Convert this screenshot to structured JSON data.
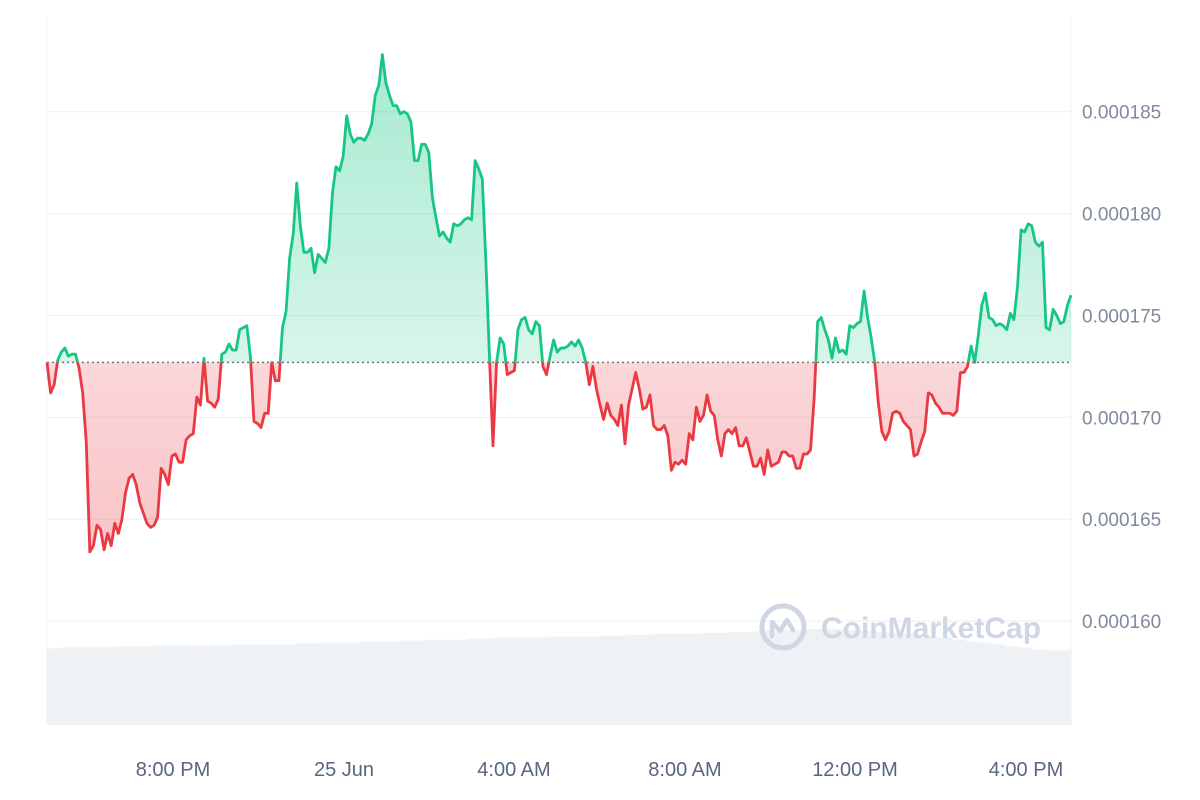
{
  "chart_data": {
    "type": "area",
    "baseline": 0.0001727,
    "ylim": [
      0.0001549,
      0.0001896
    ],
    "y_ticks": [
      "0.000160",
      "0.000165",
      "0.000170",
      "0.000175",
      "0.000180",
      "0.000185"
    ],
    "x_ticks": [
      "8:00 PM",
      "25 Jun",
      "4:00 AM",
      "8:00 AM",
      "12:00 PM",
      "4:00 PM"
    ],
    "grid": true,
    "colors": {
      "up": "#16c784",
      "down": "#ea3943",
      "grid": "#eff2f5",
      "volume": "#eff2f5",
      "baseline": "#6b7280"
    },
    "series": [
      {
        "values": [
          0.0001727,
          0.0001712,
          0.0001716,
          0.0001728,
          0.0001732,
          0.0001734,
          0.000173,
          0.0001731,
          0.0001731,
          0.0001724,
          0.0001712,
          0.0001688,
          0.0001634,
          0.0001637,
          0.0001647,
          0.0001645,
          0.0001635,
          0.0001643,
          0.0001637,
          0.0001648,
          0.0001643,
          0.000165,
          0.0001663,
          0.000167,
          0.0001672,
          0.0001667,
          0.0001658,
          0.0001653,
          0.0001648,
          0.0001646,
          0.0001647,
          0.0001651,
          0.0001675,
          0.0001672,
          0.0001667,
          0.0001681,
          0.0001682,
          0.0001678,
          0.0001678,
          0.0001689,
          0.0001691,
          0.0001692,
          0.000171,
          0.0001706,
          0.0001729,
          0.0001708,
          0.0001707,
          0.0001705,
          0.0001709,
          0.0001731,
          0.0001732,
          0.0001736,
          0.0001733,
          0.0001733,
          0.0001743,
          0.0001744,
          0.0001745,
          0.000173,
          0.0001698,
          0.0001697,
          0.0001695,
          0.0001702,
          0.0001702,
          0.0001727,
          0.0001718,
          0.0001718,
          0.0001744,
          0.0001752,
          0.0001778,
          0.000179,
          0.0001815,
          0.0001794,
          0.0001781,
          0.0001781,
          0.0001783,
          0.0001771,
          0.000178,
          0.0001778,
          0.0001776,
          0.0001783,
          0.000181,
          0.0001823,
          0.0001821,
          0.0001828,
          0.0001848,
          0.0001839,
          0.0001835,
          0.0001837,
          0.0001837,
          0.0001836,
          0.0001839,
          0.0001844,
          0.0001858,
          0.0001863,
          0.0001878,
          0.0001864,
          0.0001858,
          0.0001853,
          0.0001853,
          0.0001849,
          0.000185,
          0.0001849,
          0.0001845,
          0.0001826,
          0.0001826,
          0.0001834,
          0.0001834,
          0.000183,
          0.0001808,
          0.0001798,
          0.0001789,
          0.0001791,
          0.0001788,
          0.0001786,
          0.0001795,
          0.0001794,
          0.0001795,
          0.0001797,
          0.0001798,
          0.0001797,
          0.0001826,
          0.0001822,
          0.0001817,
          0.0001777,
          0.000173,
          0.0001686,
          0.0001727,
          0.0001739,
          0.0001736,
          0.0001721,
          0.0001722,
          0.0001723,
          0.0001743,
          0.0001748,
          0.0001749,
          0.0001743,
          0.0001741,
          0.0001747,
          0.0001745,
          0.0001725,
          0.0001721,
          0.000173,
          0.0001738,
          0.0001732,
          0.0001734,
          0.0001734,
          0.0001735,
          0.0001737,
          0.0001735,
          0.0001738,
          0.0001734,
          0.0001727,
          0.0001716,
          0.0001725,
          0.0001714,
          0.0001706,
          0.0001699,
          0.0001707,
          0.0001701,
          0.0001699,
          0.0001696,
          0.0001706,
          0.0001687,
          0.0001706,
          0.0001714,
          0.0001722,
          0.0001714,
          0.0001704,
          0.0001705,
          0.0001711,
          0.0001696,
          0.0001694,
          0.0001694,
          0.0001696,
          0.0001691,
          0.0001674,
          0.0001678,
          0.0001677,
          0.0001679,
          0.0001677,
          0.0001692,
          0.0001689,
          0.0001705,
          0.0001698,
          0.0001701,
          0.0001711,
          0.0001703,
          0.0001701,
          0.0001689,
          0.0001681,
          0.0001692,
          0.0001694,
          0.0001692,
          0.0001695,
          0.0001686,
          0.0001686,
          0.000169,
          0.0001683,
          0.0001676,
          0.0001676,
          0.000168,
          0.0001672,
          0.0001684,
          0.0001676,
          0.0001677,
          0.0001678,
          0.0001683,
          0.0001683,
          0.0001681,
          0.0001681,
          0.0001675,
          0.0001675,
          0.0001682,
          0.0001682,
          0.0001684,
          0.0001709,
          0.0001747,
          0.0001749,
          0.0001743,
          0.0001738,
          0.0001729,
          0.0001739,
          0.0001732,
          0.0001733,
          0.0001731,
          0.0001745,
          0.0001744,
          0.0001746,
          0.0001747,
          0.0001762,
          0.0001749,
          0.0001739,
          0.0001727,
          0.0001707,
          0.0001693,
          0.0001689,
          0.0001693,
          0.0001702,
          0.0001703,
          0.0001702,
          0.0001698,
          0.0001696,
          0.0001694,
          0.0001681,
          0.0001682,
          0.0001688,
          0.0001693,
          0.0001712,
          0.0001711,
          0.0001707,
          0.0001705,
          0.0001702,
          0.0001702,
          0.0001702,
          0.0001701,
          0.0001703,
          0.0001722,
          0.0001722,
          0.0001725,
          0.0001735,
          0.0001727,
          0.000174,
          0.0001755,
          0.0001761,
          0.0001749,
          0.0001748,
          0.0001745,
          0.0001746,
          0.0001745,
          0.0001743,
          0.0001751,
          0.0001748,
          0.0001764,
          0.0001792,
          0.0001791,
          0.0001795,
          0.0001794,
          0.0001786,
          0.0001784,
          0.0001786,
          0.0001744,
          0.0001743,
          0.0001753,
          0.000175,
          0.0001746,
          0.0001747,
          0.0001755,
          0.000176
        ]
      }
    ],
    "volume": [
      0.79,
      0.8,
      0.8,
      0.8,
      0.8,
      0.81,
      0.81,
      0.81,
      0.82,
      0.82,
      0.82,
      0.82,
      0.82,
      0.82,
      0.83,
      0.83,
      0.83,
      0.83,
      0.83,
      0.84,
      0.84,
      0.85,
      0.85,
      0.85,
      0.86,
      0.86,
      0.86,
      0.87,
      0.87,
      0.88,
      0.88,
      0.88,
      0.89,
      0.89,
      0.9,
      0.9,
      0.9,
      0.9,
      0.91,
      0.91,
      0.91,
      0.91,
      0.92,
      0.92,
      0.93,
      0.93,
      0.94,
      0.94,
      0.94,
      0.94,
      0.95,
      0.95,
      0.96,
      0.96,
      0.97,
      0.97,
      0.98,
      0.98,
      0.99,
      0.99,
      0.99,
      0.98,
      0.97,
      0.96,
      0.95,
      0.94,
      0.92,
      0.91,
      0.9,
      0.88,
      0.86,
      0.85,
      0.83,
      0.81,
      0.8,
      0.78,
      0.77,
      0.77
    ]
  },
  "watermark": {
    "text": "CoinMarketCap",
    "icon": "coinmarketcap-logo-icon"
  }
}
